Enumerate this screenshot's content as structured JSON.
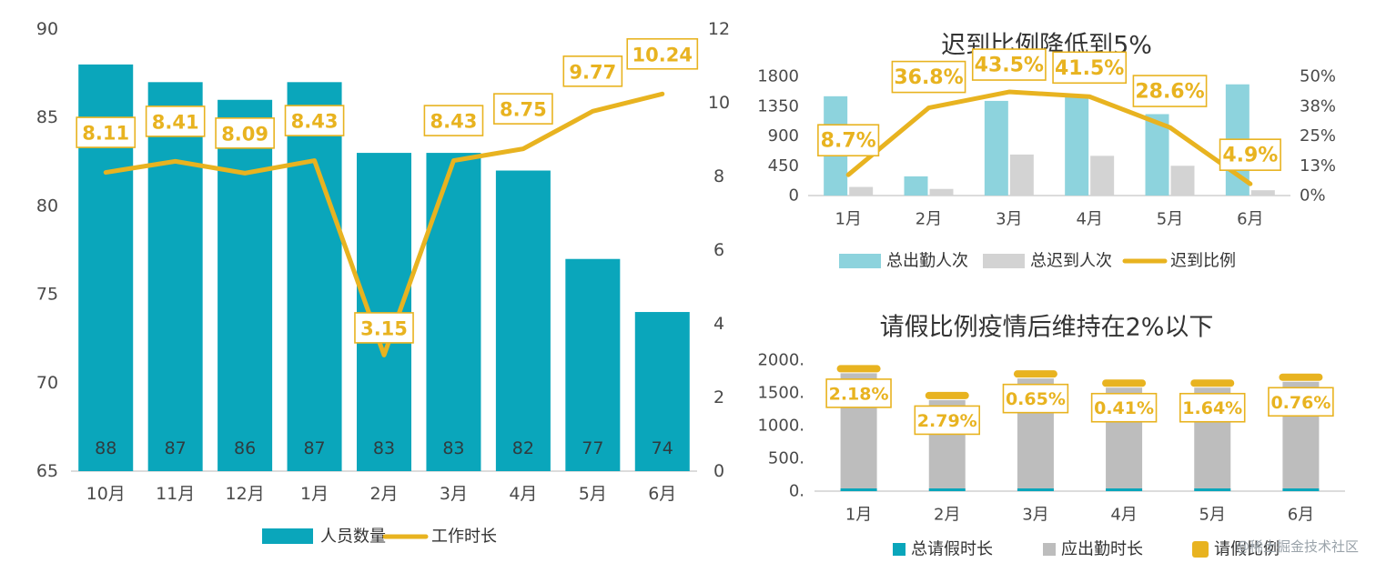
{
  "colors": {
    "teal": "#0aa6bb",
    "light_teal": "#8dd3dd",
    "gray": "#bdbdbd",
    "light_gray": "#d3d3d3",
    "gold": "#e8b320",
    "axis_line": "#d0d0d0"
  },
  "chart_data": [
    {
      "id": "headcount",
      "type": "bar+line",
      "title": "",
      "categories": [
        "10月",
        "11月",
        "12月",
        "1月",
        "2月",
        "3月",
        "4月",
        "5月",
        "6月"
      ],
      "series": [
        {
          "name": "人员数量",
          "type": "bar",
          "axis": "left",
          "values": [
            88,
            87,
            86,
            87,
            83,
            83,
            82,
            77,
            74
          ]
        },
        {
          "name": "工作时长",
          "type": "line",
          "axis": "right",
          "values": [
            8.11,
            8.41,
            8.09,
            8.43,
            3.15,
            8.43,
            8.75,
            9.77,
            10.24
          ]
        }
      ],
      "bar_labels": [
        "88",
        "87",
        "86",
        "87",
        "83",
        "83",
        "82",
        "77",
        "74"
      ],
      "line_labels": [
        "8.11",
        "8.41",
        "8.09",
        "8.43",
        "3.15",
        "8.43",
        "8.75",
        "9.77",
        "10.24"
      ],
      "ylim_left": [
        65,
        90
      ],
      "ylim_right": [
        0,
        12
      ],
      "left_ticks": [
        "90",
        "85",
        "80",
        "75",
        "70",
        "65"
      ],
      "right_ticks": [
        "12",
        "10",
        "8",
        "6",
        "4",
        "2",
        "0"
      ],
      "legend": [
        "人员数量",
        "工作时长"
      ],
      "legend_position": "bottom"
    },
    {
      "id": "late",
      "type": "bar+line",
      "title": "迟到比例降低到5%",
      "categories": [
        "1月",
        "2月",
        "3月",
        "4月",
        "5月",
        "6月"
      ],
      "series": [
        {
          "name": "总出勤人次",
          "type": "bar",
          "axis": "left",
          "values": [
            1500,
            290,
            1430,
            1500,
            1230,
            1680
          ]
        },
        {
          "name": "总迟到人次",
          "type": "bar",
          "axis": "left",
          "values": [
            130,
            100,
            620,
            600,
            450,
            80
          ]
        },
        {
          "name": "迟到比例",
          "type": "line",
          "axis": "right",
          "values": [
            8.7,
            36.8,
            43.5,
            41.5,
            28.6,
            4.9
          ]
        }
      ],
      "line_labels": [
        "8.7%",
        "36.8%",
        "43.5%",
        "41.5%",
        "28.6%",
        "4.9%"
      ],
      "ylim_left": [
        0,
        1800
      ],
      "ylim_right": [
        0,
        50
      ],
      "left_ticks": [
        "1800",
        "1350",
        "900",
        "450",
        "0"
      ],
      "right_ticks": [
        "50%",
        "38%",
        "25%",
        "13%",
        "0%"
      ],
      "legend": [
        "总出勤人次",
        "总迟到人次",
        "迟到比例"
      ],
      "legend_position": "bottom"
    },
    {
      "id": "leave",
      "type": "stacked-bar+marker",
      "title": "请假比例疫情后维持在2%以下",
      "categories": [
        "1月",
        "2月",
        "3月",
        "4月",
        "5月",
        "6月"
      ],
      "series": [
        {
          "name": "总请假时长",
          "type": "bar",
          "values": [
            35,
            30,
            10,
            6,
            25,
            11
          ]
        },
        {
          "name": "应出勤时长",
          "type": "bar",
          "values": [
            1800,
            1390,
            1720,
            1580,
            1580,
            1670
          ]
        },
        {
          "name": "请假比例",
          "type": "marker",
          "values": [
            2.18,
            2.79,
            0.65,
            0.41,
            1.64,
            0.76
          ]
        }
      ],
      "marker_labels": [
        "2.18%",
        "2.79%",
        "0.65%",
        "0.41%",
        "1.64%",
        "0.76%"
      ],
      "ylim": [
        0,
        2000
      ],
      "left_ticks": [
        "2000.",
        "1500.",
        "1000.",
        "500.",
        "0."
      ],
      "legend": [
        "总请假时长",
        "应出勤时长",
        "请假比例"
      ],
      "legend_position": "bottom"
    }
  ],
  "watermark": "@稀土掘金技术社区"
}
